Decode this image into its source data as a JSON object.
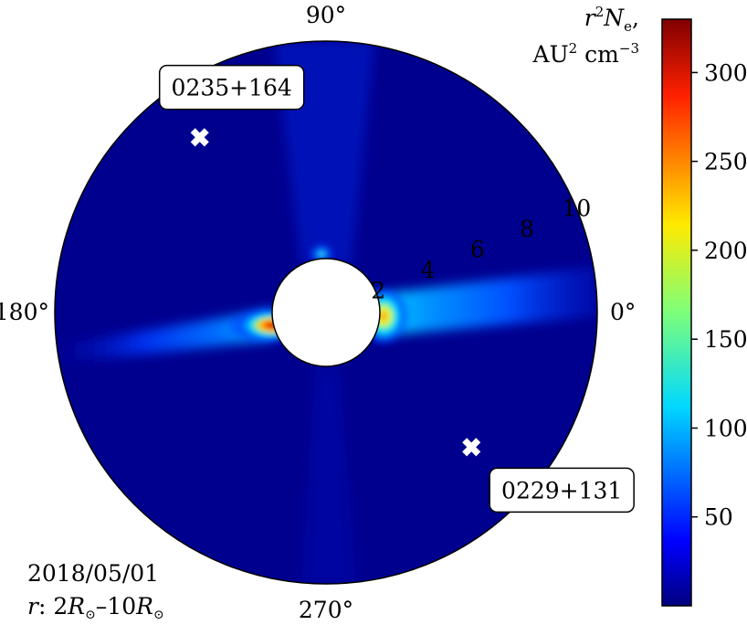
{
  "chart_data": {
    "type": "heatmap",
    "projection": "polar",
    "angle_ticks": [
      "0°",
      "90°",
      "180°",
      "270°"
    ],
    "radial_ticks": [
      "2",
      "4",
      "6",
      "8",
      "10"
    ],
    "radial_range": [
      1.9,
      10
    ],
    "colorbar": {
      "title_line1": "r²N",
      "title_sub": "e",
      "title_comma": ",",
      "units_base": "AU",
      "units_sup": "2",
      "units_mid": " cm",
      "units_exp": "−3",
      "ticks": [
        "50",
        "100",
        "150",
        "200",
        "250",
        "300"
      ],
      "tick_values": [
        50,
        100,
        150,
        200,
        250,
        300
      ],
      "range": [
        0,
        330
      ],
      "colormap": "jet"
    },
    "sources": [
      {
        "name": "0235+164",
        "angle_deg": 126,
        "r": 7.9
      },
      {
        "name": "0229+131",
        "angle_deg": 317,
        "r": 7.3
      }
    ],
    "features": {
      "streamer_peak_value": 330,
      "streamer_peak_angle_deg": 184,
      "streamer_east_angle_deg": 4
    },
    "date_label": "2018/05/01",
    "range_label_prefix": "r",
    "range_label_colon": ":  2",
    "range_label_R1": "R",
    "range_label_sun1": "⊙",
    "range_label_dash": "–10",
    "range_label_R2": "R",
    "range_label_sun2": "⊙"
  },
  "colors": {
    "background_disk": "#00008f",
    "marker": "#ffffff",
    "occulter": "#ffffff"
  }
}
